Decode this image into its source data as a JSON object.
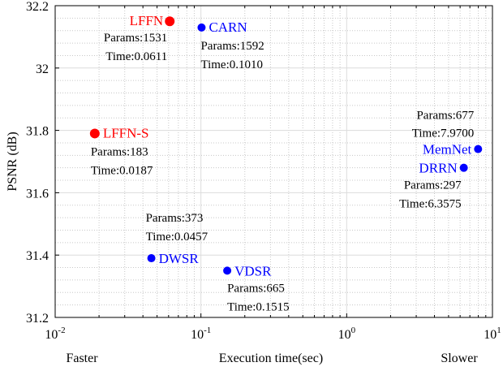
{
  "chart_data": {
    "type": "scatter",
    "title": "",
    "xlabel": "Execution time(sec)",
    "ylabel": "PSNR (dB)",
    "x_scale": "log",
    "xlim": [
      0.01,
      10
    ],
    "ylim": [
      31.2,
      32.2
    ],
    "x_ticks": [
      {
        "value": 0.01,
        "base": "10",
        "exp": "-2"
      },
      {
        "value": 0.1,
        "base": "10",
        "exp": "-1"
      },
      {
        "value": 1,
        "base": "10",
        "exp": "0"
      },
      {
        "value": 10,
        "base": "10",
        "exp": "1"
      }
    ],
    "y_ticks": [
      "31.2",
      "31.4",
      "31.6",
      "31.8",
      "32",
      "32.2"
    ],
    "x_annotations": {
      "left": "Faster",
      "right": "Slower"
    },
    "grid": true,
    "points": [
      {
        "name": "LFFN",
        "x": 0.0611,
        "y": 32.15,
        "color": "#ff0000",
        "params": "Params:1531",
        "time": "Time:0.0611"
      },
      {
        "name": "CARN",
        "x": 0.101,
        "y": 32.13,
        "color": "#0000ff",
        "params": "Params:1592",
        "time": "Time:0.1010"
      },
      {
        "name": "LFFN-S",
        "x": 0.0187,
        "y": 31.79,
        "color": "#ff0000",
        "params": "Params:183",
        "time": "Time:0.0187"
      },
      {
        "name": "MemNet",
        "x": 7.97,
        "y": 31.74,
        "color": "#0000ff",
        "params": "Params:677",
        "time": "Time:7.9700"
      },
      {
        "name": "DRRN",
        "x": 6.3575,
        "y": 31.68,
        "color": "#0000ff",
        "params": "Params:297",
        "time": "Time:6.3575"
      },
      {
        "name": "DWSR",
        "x": 0.0457,
        "y": 31.39,
        "color": "#0000ff",
        "params": "Params:373",
        "time": "Time:0.0457"
      },
      {
        "name": "VDSR",
        "x": 0.1515,
        "y": 31.35,
        "color": "#0000ff",
        "params": "Params:665",
        "time": "Time:0.1515"
      }
    ]
  }
}
